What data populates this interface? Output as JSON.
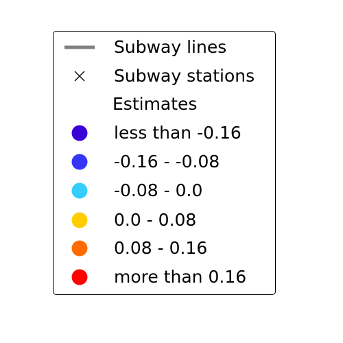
{
  "legend": {
    "items": [
      {
        "kind": "line",
        "label": "Subway lines",
        "color": "#808080",
        "icon": "line-icon"
      },
      {
        "kind": "x",
        "label": "Subway stations",
        "color": "#000000",
        "icon": "x-marker-icon"
      },
      {
        "kind": "title",
        "label": "Estimates"
      },
      {
        "kind": "dot",
        "label": "less than -0.16",
        "color": "#3a00d6",
        "icon": "circle-icon"
      },
      {
        "kind": "dot",
        "label": "-0.16 - -0.08",
        "color": "#3636f9",
        "icon": "circle-icon"
      },
      {
        "kind": "dot",
        "label": "-0.08 - 0.0",
        "color": "#35cdfc",
        "icon": "circle-icon"
      },
      {
        "kind": "dot",
        "label": "0.0 - 0.08",
        "color": "#ffcd00",
        "icon": "circle-icon"
      },
      {
        "kind": "dot",
        "label": "0.08 - 0.16",
        "color": "#ff6b00",
        "icon": "circle-icon"
      },
      {
        "kind": "dot",
        "label": "more than 0.16",
        "color": "#ff0000",
        "icon": "circle-icon"
      }
    ]
  }
}
